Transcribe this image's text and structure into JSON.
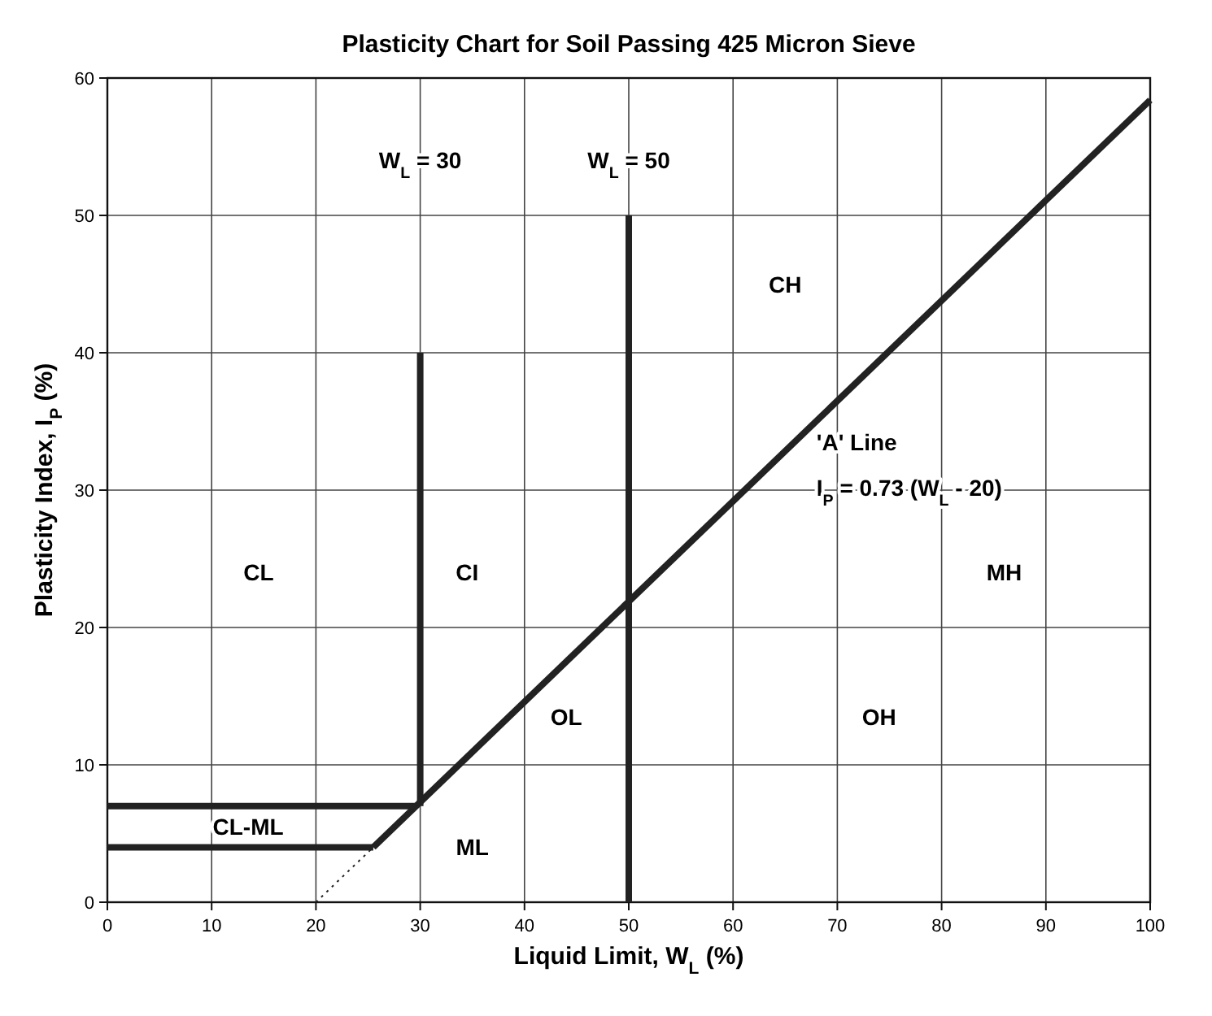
{
  "chart_data": {
    "type": "line",
    "title": "Plasticity Chart for Soil Passing 425 Micron Sieve",
    "xlabel": "Liquid Limit, W$_{L}$ (%)",
    "ylabel": "Plasticity Index, I$_{P}$ (%)",
    "xlim": [
      0,
      100
    ],
    "ylim": [
      0,
      60
    ],
    "xticks": [
      0,
      10,
      20,
      30,
      40,
      50,
      60,
      70,
      80,
      90,
      100
    ],
    "yticks": [
      0,
      10,
      20,
      30,
      40,
      50,
      60
    ],
    "grid": true,
    "marker": "none",
    "series": [
      {
        "color": "#222222",
        "x": [
          25.5,
          100
        ],
        "values": [
          4,
          58.4
        ]
      },
      {
        "color": "#222222",
        "x": [
          20,
          25.5
        ],
        "values": [
          0,
          4
        ],
        "line_style": "dotted"
      },
      {
        "color": "#222222",
        "x": [
          30,
          30
        ],
        "values": [
          7,
          40
        ]
      },
      {
        "color": "#222222",
        "x": [
          50,
          50
        ],
        "values": [
          0,
          50
        ]
      },
      {
        "color": "#222222",
        "x": [
          0,
          25.5
        ],
        "values": [
          4,
          4
        ]
      },
      {
        "color": "#222222",
        "x": [
          0,
          29.6
        ],
        "values": [
          7,
          7
        ]
      }
    ],
    "annotations": [
      "W$_{L}$ = 30",
      "W$_{L}$ = 50",
      "'A' Line",
      "I$_{P}$ = 0.73 (W$_{L}$ - 20)",
      "CL",
      "CI",
      "CH",
      "MH",
      "OL",
      "OH",
      "CL-ML",
      "ML"
    ]
  }
}
